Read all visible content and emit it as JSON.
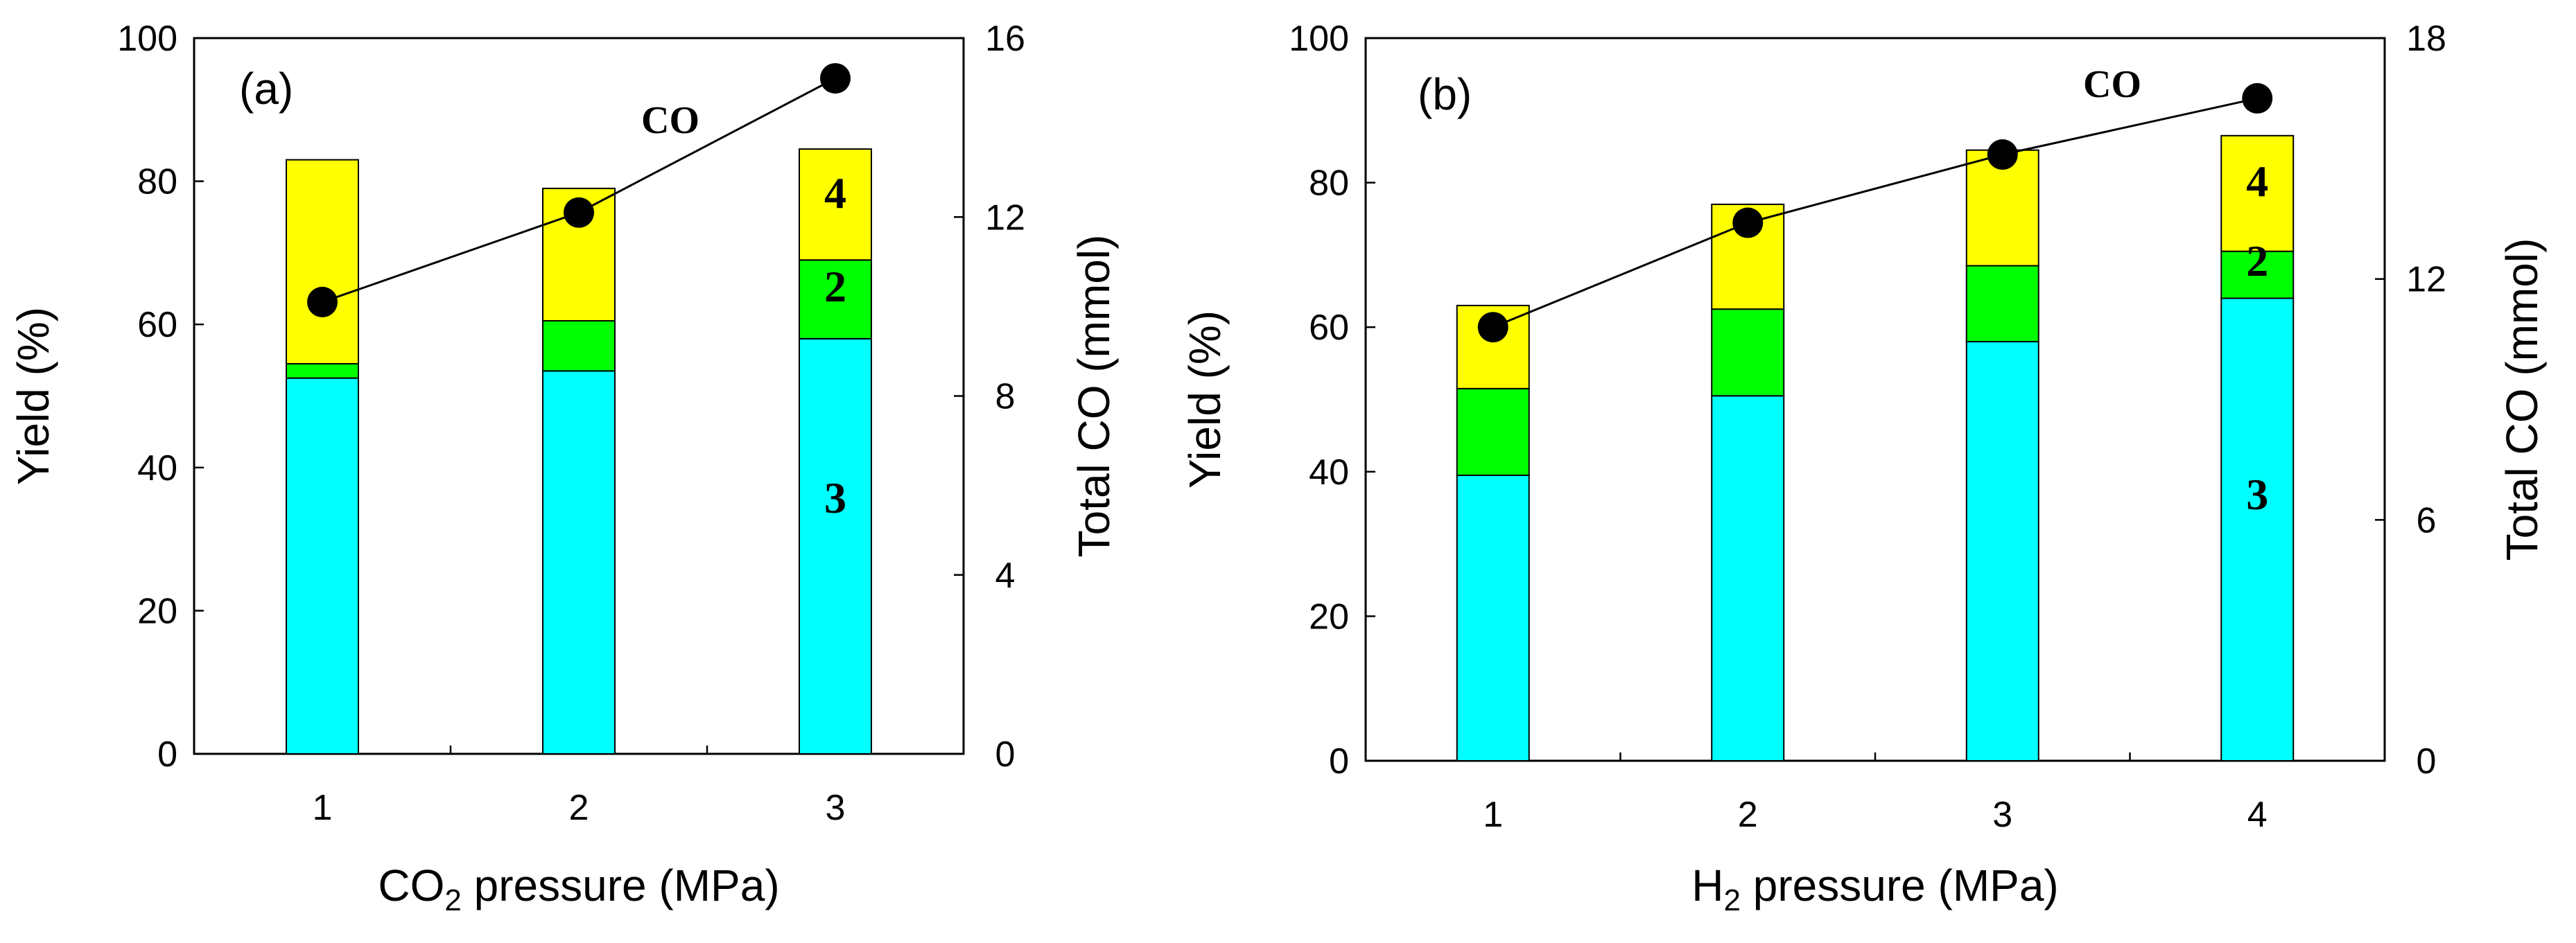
{
  "chart_data": [
    {
      "type": "bar",
      "panel_label": "(a)",
      "categories": [
        "1",
        "2",
        "3"
      ],
      "xlabel": {
        "main": "CO",
        "sub": "2",
        "rest": " pressure (MPa)"
      },
      "ylabel": "Yield (%)",
      "y2label": "Total CO (mmol)",
      "ylim": [
        0,
        100
      ],
      "yticks": [
        "0",
        "20",
        "40",
        "60",
        "80",
        "100"
      ],
      "y2lim": [
        0,
        16
      ],
      "y2ticks": [
        "0",
        "4",
        "8",
        "12",
        "16"
      ],
      "stacked": true,
      "series": [
        {
          "name": "3",
          "color": "#00FFFF",
          "values": [
            52.5,
            53.5,
            58
          ]
        },
        {
          "name": "2",
          "color": "#00FF00",
          "values": [
            2,
            7,
            11
          ]
        },
        {
          "name": "4",
          "color": "#FFFF00",
          "values": [
            28.5,
            18.5,
            15.5
          ]
        }
      ],
      "line_series": {
        "name": "CO",
        "axis": "right",
        "values": [
          10.1,
          12.1,
          15.1
        ]
      },
      "labels": {
        "series_3": "3",
        "series_2": "2",
        "series_4": "4",
        "co": "CO"
      }
    },
    {
      "type": "bar",
      "panel_label": "(b)",
      "categories": [
        "1",
        "2",
        "3",
        "4"
      ],
      "xlabel": {
        "main": "H",
        "sub": "2",
        "rest": " pressure (MPa)"
      },
      "ylabel": "Yield (%)",
      "y2label": "Total CO (mmol)",
      "ylim": [
        0,
        100
      ],
      "yticks": [
        "0",
        "20",
        "40",
        "60",
        "80",
        "100"
      ],
      "y2lim": [
        0,
        18
      ],
      "y2ticks": [
        "0",
        "6",
        "12",
        "18"
      ],
      "stacked": true,
      "series": [
        {
          "name": "3",
          "color": "#00FFFF",
          "values": [
            39.5,
            50.5,
            58,
            64
          ]
        },
        {
          "name": "2",
          "color": "#00FF00",
          "values": [
            12,
            12,
            10.5,
            6.5
          ]
        },
        {
          "name": "4",
          "color": "#FFFF00",
          "values": [
            11.5,
            14.5,
            16,
            16
          ]
        }
      ],
      "line_series": {
        "name": "CO",
        "axis": "right",
        "values": [
          10.8,
          13.4,
          15.1,
          16.5
        ]
      },
      "labels": {
        "series_3": "3",
        "series_2": "2",
        "series_4": "4",
        "co": "CO"
      }
    }
  ]
}
